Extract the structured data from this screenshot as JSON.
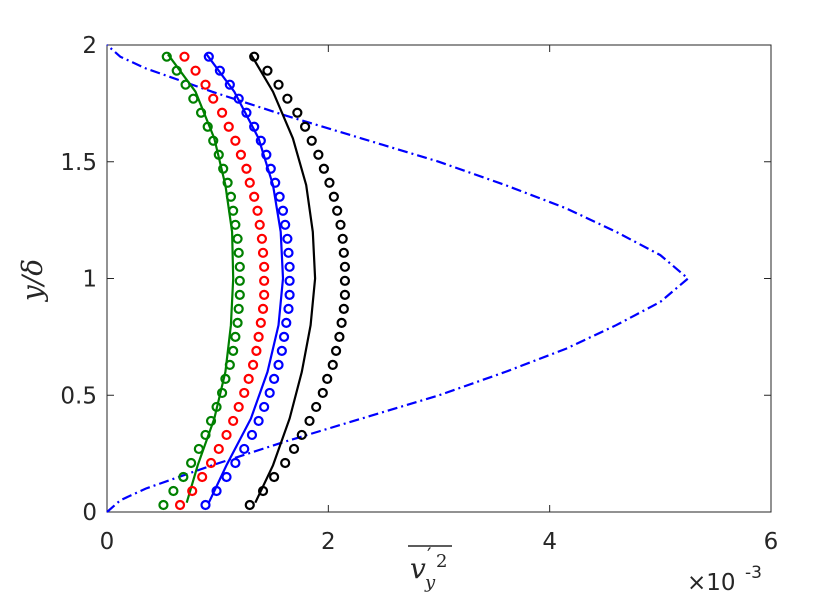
{
  "chart_data": {
    "type": "line",
    "x_label": {
      "base": "v",
      "prime": "′",
      "sub": "y",
      "sup": "2"
    },
    "y_label": "y/δ",
    "x_multiplier": {
      "base": "×10",
      "exp": "-3"
    },
    "xlim": [
      0,
      6
    ],
    "xticks": [
      0,
      2,
      4,
      6
    ],
    "ylim": [
      0,
      2
    ],
    "yticks": [
      0,
      0.5,
      1,
      1.5,
      2
    ],
    "series": [
      {
        "color": "#0000ff",
        "style": "dashdot",
        "x": [
          0,
          0.12,
          0.35,
          0.95,
          1.6,
          2.3,
          3.0,
          3.6,
          4.15,
          4.6,
          5.0,
          5.25,
          5.0,
          4.6,
          4.15,
          3.6,
          3.0,
          2.3,
          1.6,
          0.95,
          0.35,
          0.12,
          0
        ],
        "y": [
          0,
          0.05,
          0.1,
          0.2,
          0.3,
          0.4,
          0.5,
          0.6,
          0.7,
          0.8,
          0.9,
          1.0,
          1.1,
          1.2,
          1.3,
          1.4,
          1.5,
          1.6,
          1.7,
          1.8,
          1.9,
          1.95,
          2
        ]
      },
      {
        "color": "#000000",
        "style": "solid",
        "x": [
          1.34,
          1.5,
          1.65,
          1.76,
          1.84,
          1.88,
          1.86,
          1.8,
          1.68,
          1.5,
          1.3
        ],
        "y": [
          0.04,
          0.2,
          0.4,
          0.6,
          0.8,
          1.0,
          1.2,
          1.4,
          1.6,
          1.8,
          1.96
        ]
      },
      {
        "color": "#0000ff",
        "style": "solid",
        "x": [
          0.92,
          1.08,
          1.3,
          1.45,
          1.55,
          1.59,
          1.57,
          1.5,
          1.37,
          1.15,
          0.9
        ],
        "y": [
          0.04,
          0.2,
          0.4,
          0.6,
          0.8,
          1.0,
          1.2,
          1.4,
          1.6,
          1.8,
          1.96
        ]
      },
      {
        "color": "#008000",
        "style": "solid",
        "x": [
          0.72,
          0.82,
          0.97,
          1.07,
          1.12,
          1.14,
          1.13,
          1.07,
          0.97,
          0.8,
          0.55
        ],
        "y": [
          0.04,
          0.2,
          0.4,
          0.6,
          0.8,
          1.0,
          1.2,
          1.4,
          1.6,
          1.8,
          1.96
        ]
      },
      {
        "color": "#000000",
        "style": "circle",
        "x": [
          1.29,
          1.41,
          1.51,
          1.61,
          1.69,
          1.76,
          1.83,
          1.89,
          1.95,
          1.99,
          2.04,
          2.07,
          2.1,
          2.12,
          2.14,
          2.15,
          2.15,
          2.15,
          2.14,
          2.13,
          2.11,
          2.08,
          2.05,
          2.01,
          1.96,
          1.91,
          1.85,
          1.79,
          1.72,
          1.63,
          1.55,
          1.45,
          1.33
        ],
        "y": [
          0.03,
          0.09,
          0.15,
          0.21,
          0.27,
          0.33,
          0.39,
          0.45,
          0.51,
          0.57,
          0.63,
          0.69,
          0.75,
          0.81,
          0.87,
          0.93,
          0.99,
          1.05,
          1.11,
          1.17,
          1.23,
          1.29,
          1.35,
          1.41,
          1.47,
          1.53,
          1.59,
          1.65,
          1.71,
          1.77,
          1.83,
          1.89,
          1.95
        ]
      },
      {
        "color": "#0000ff",
        "style": "circle",
        "x": [
          0.89,
          0.99,
          1.08,
          1.16,
          1.24,
          1.31,
          1.37,
          1.42,
          1.47,
          1.51,
          1.55,
          1.58,
          1.6,
          1.62,
          1.64,
          1.65,
          1.65,
          1.65,
          1.64,
          1.63,
          1.61,
          1.59,
          1.56,
          1.52,
          1.48,
          1.44,
          1.39,
          1.33,
          1.26,
          1.19,
          1.11,
          1.02,
          0.92
        ],
        "y": [
          0.03,
          0.09,
          0.15,
          0.21,
          0.27,
          0.33,
          0.39,
          0.45,
          0.51,
          0.57,
          0.63,
          0.69,
          0.75,
          0.81,
          0.87,
          0.93,
          0.99,
          1.05,
          1.11,
          1.17,
          1.23,
          1.29,
          1.35,
          1.41,
          1.47,
          1.53,
          1.59,
          1.65,
          1.71,
          1.77,
          1.83,
          1.89,
          1.95
        ]
      },
      {
        "color": "#ff0000",
        "style": "circle",
        "x": [
          0.66,
          0.77,
          0.86,
          0.94,
          1.01,
          1.08,
          1.14,
          1.19,
          1.24,
          1.28,
          1.32,
          1.35,
          1.37,
          1.39,
          1.41,
          1.42,
          1.42,
          1.42,
          1.41,
          1.4,
          1.38,
          1.36,
          1.33,
          1.29,
          1.26,
          1.21,
          1.16,
          1.1,
          1.04,
          0.96,
          0.89,
          0.8,
          0.7
        ],
        "y": [
          0.03,
          0.09,
          0.15,
          0.21,
          0.27,
          0.33,
          0.39,
          0.45,
          0.51,
          0.57,
          0.63,
          0.69,
          0.75,
          0.81,
          0.87,
          0.93,
          0.99,
          1.05,
          1.11,
          1.17,
          1.23,
          1.29,
          1.35,
          1.41,
          1.47,
          1.53,
          1.59,
          1.65,
          1.71,
          1.77,
          1.83,
          1.89,
          1.95
        ]
      },
      {
        "color": "#008000",
        "style": "circle",
        "x": [
          0.51,
          0.6,
          0.69,
          0.76,
          0.83,
          0.89,
          0.94,
          0.99,
          1.04,
          1.07,
          1.11,
          1.14,
          1.16,
          1.18,
          1.19,
          1.2,
          1.2,
          1.2,
          1.19,
          1.18,
          1.16,
          1.14,
          1.12,
          1.09,
          1.05,
          1.01,
          0.96,
          0.91,
          0.85,
          0.78,
          0.71,
          0.63,
          0.54
        ],
        "y": [
          0.03,
          0.09,
          0.15,
          0.21,
          0.27,
          0.33,
          0.39,
          0.45,
          0.51,
          0.57,
          0.63,
          0.69,
          0.75,
          0.81,
          0.87,
          0.93,
          0.99,
          1.05,
          1.11,
          1.17,
          1.23,
          1.29,
          1.35,
          1.41,
          1.47,
          1.53,
          1.59,
          1.65,
          1.71,
          1.77,
          1.83,
          1.89,
          1.95
        ]
      }
    ]
  }
}
